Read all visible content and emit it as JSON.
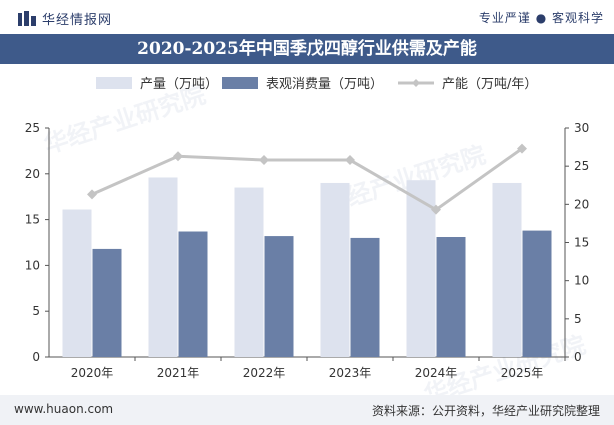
{
  "header": {
    "brand": "华经情报网",
    "slogan": "专业严谨 ● 客观科学"
  },
  "chart_data": {
    "type": "bar",
    "title": "2020-2025年中国季戊四醇行业供需及产能",
    "categories": [
      "2020年",
      "2021年",
      "2022年",
      "2023年",
      "2024年",
      "2025年"
    ],
    "series": [
      {
        "name": "产量（万吨）",
        "type": "bar",
        "axis": "left",
        "color": "#dde2ee",
        "values": [
          16.1,
          19.6,
          18.5,
          19.0,
          19.3,
          19.0
        ]
      },
      {
        "name": "表观消费量（万吨）",
        "type": "bar",
        "axis": "left",
        "color": "#6a7fa6",
        "values": [
          11.8,
          13.7,
          13.2,
          13.0,
          13.1,
          13.8
        ]
      },
      {
        "name": "产能（万吨/年）",
        "type": "line",
        "axis": "right",
        "color": "#c4c4c4",
        "values": [
          21.3,
          26.3,
          25.8,
          25.8,
          19.3,
          27.3
        ]
      }
    ],
    "y_left": {
      "min": 0,
      "max": 25,
      "ticks": [
        "0",
        "5",
        "10",
        "15",
        "20",
        "25"
      ]
    },
    "y_right": {
      "min": 0,
      "max": 30,
      "ticks": [
        "0",
        "5",
        "10",
        "15",
        "20",
        "25",
        "30"
      ]
    },
    "grid": false,
    "legend": "top"
  },
  "watermarks": [
    "华经产业研究院",
    "华经产业研究院",
    "华经产业研究院"
  ],
  "footer": {
    "website": "www.huaon.com",
    "source": "资料来源：公开资料，华经产业研究院整理"
  }
}
